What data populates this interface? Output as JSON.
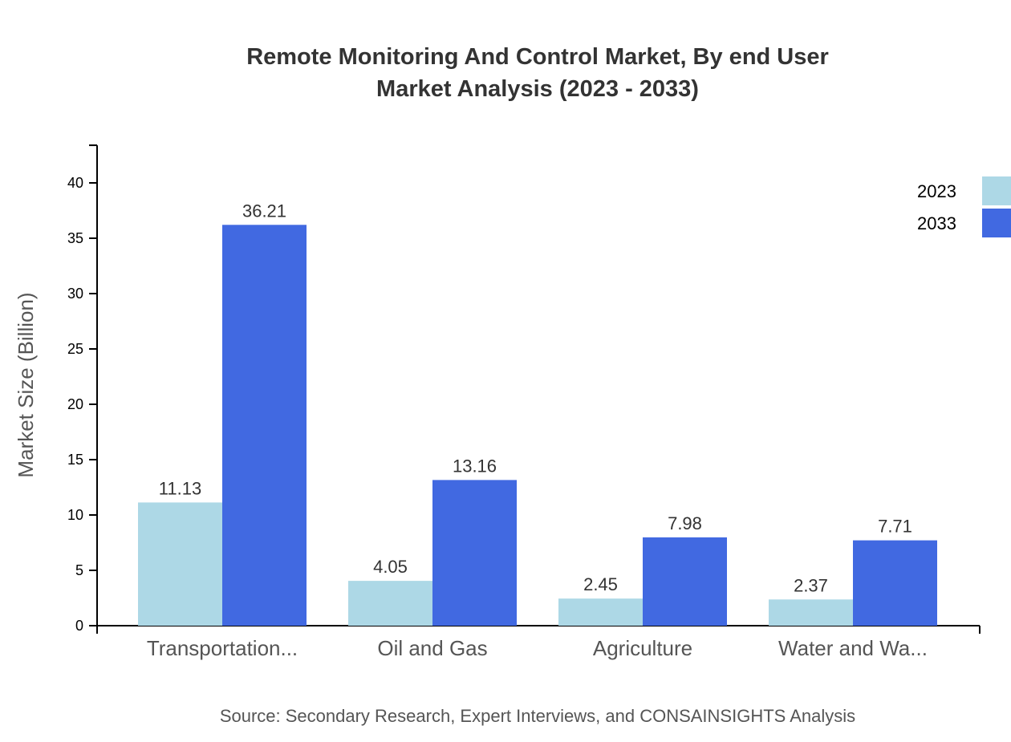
{
  "chart_data": {
    "type": "bar",
    "title": [
      "Remote Monitoring And Control Market, By end User",
      "Market Analysis (2023 - 2033)"
    ],
    "xlabel": "",
    "ylabel": "Market Size (Billion)",
    "ylim": [
      0,
      43.4
    ],
    "yticks": [
      0,
      5,
      10,
      15,
      20,
      25,
      30,
      35,
      40
    ],
    "categories": [
      "Transportation...",
      "Oil and Gas",
      "Agriculture",
      "Water and Wa..."
    ],
    "series": [
      {
        "name": "2023",
        "color": "#add8e6",
        "values": [
          11.13,
          4.05,
          2.45,
          2.37
        ]
      },
      {
        "name": "2033",
        "color": "#4169e1",
        "values": [
          36.21,
          13.16,
          7.98,
          7.71
        ]
      }
    ],
    "legend_position": "top-right",
    "grid": false,
    "source": "Source: Secondary Research, Expert Interviews, and CONSAINSIGHTS Analysis"
  }
}
